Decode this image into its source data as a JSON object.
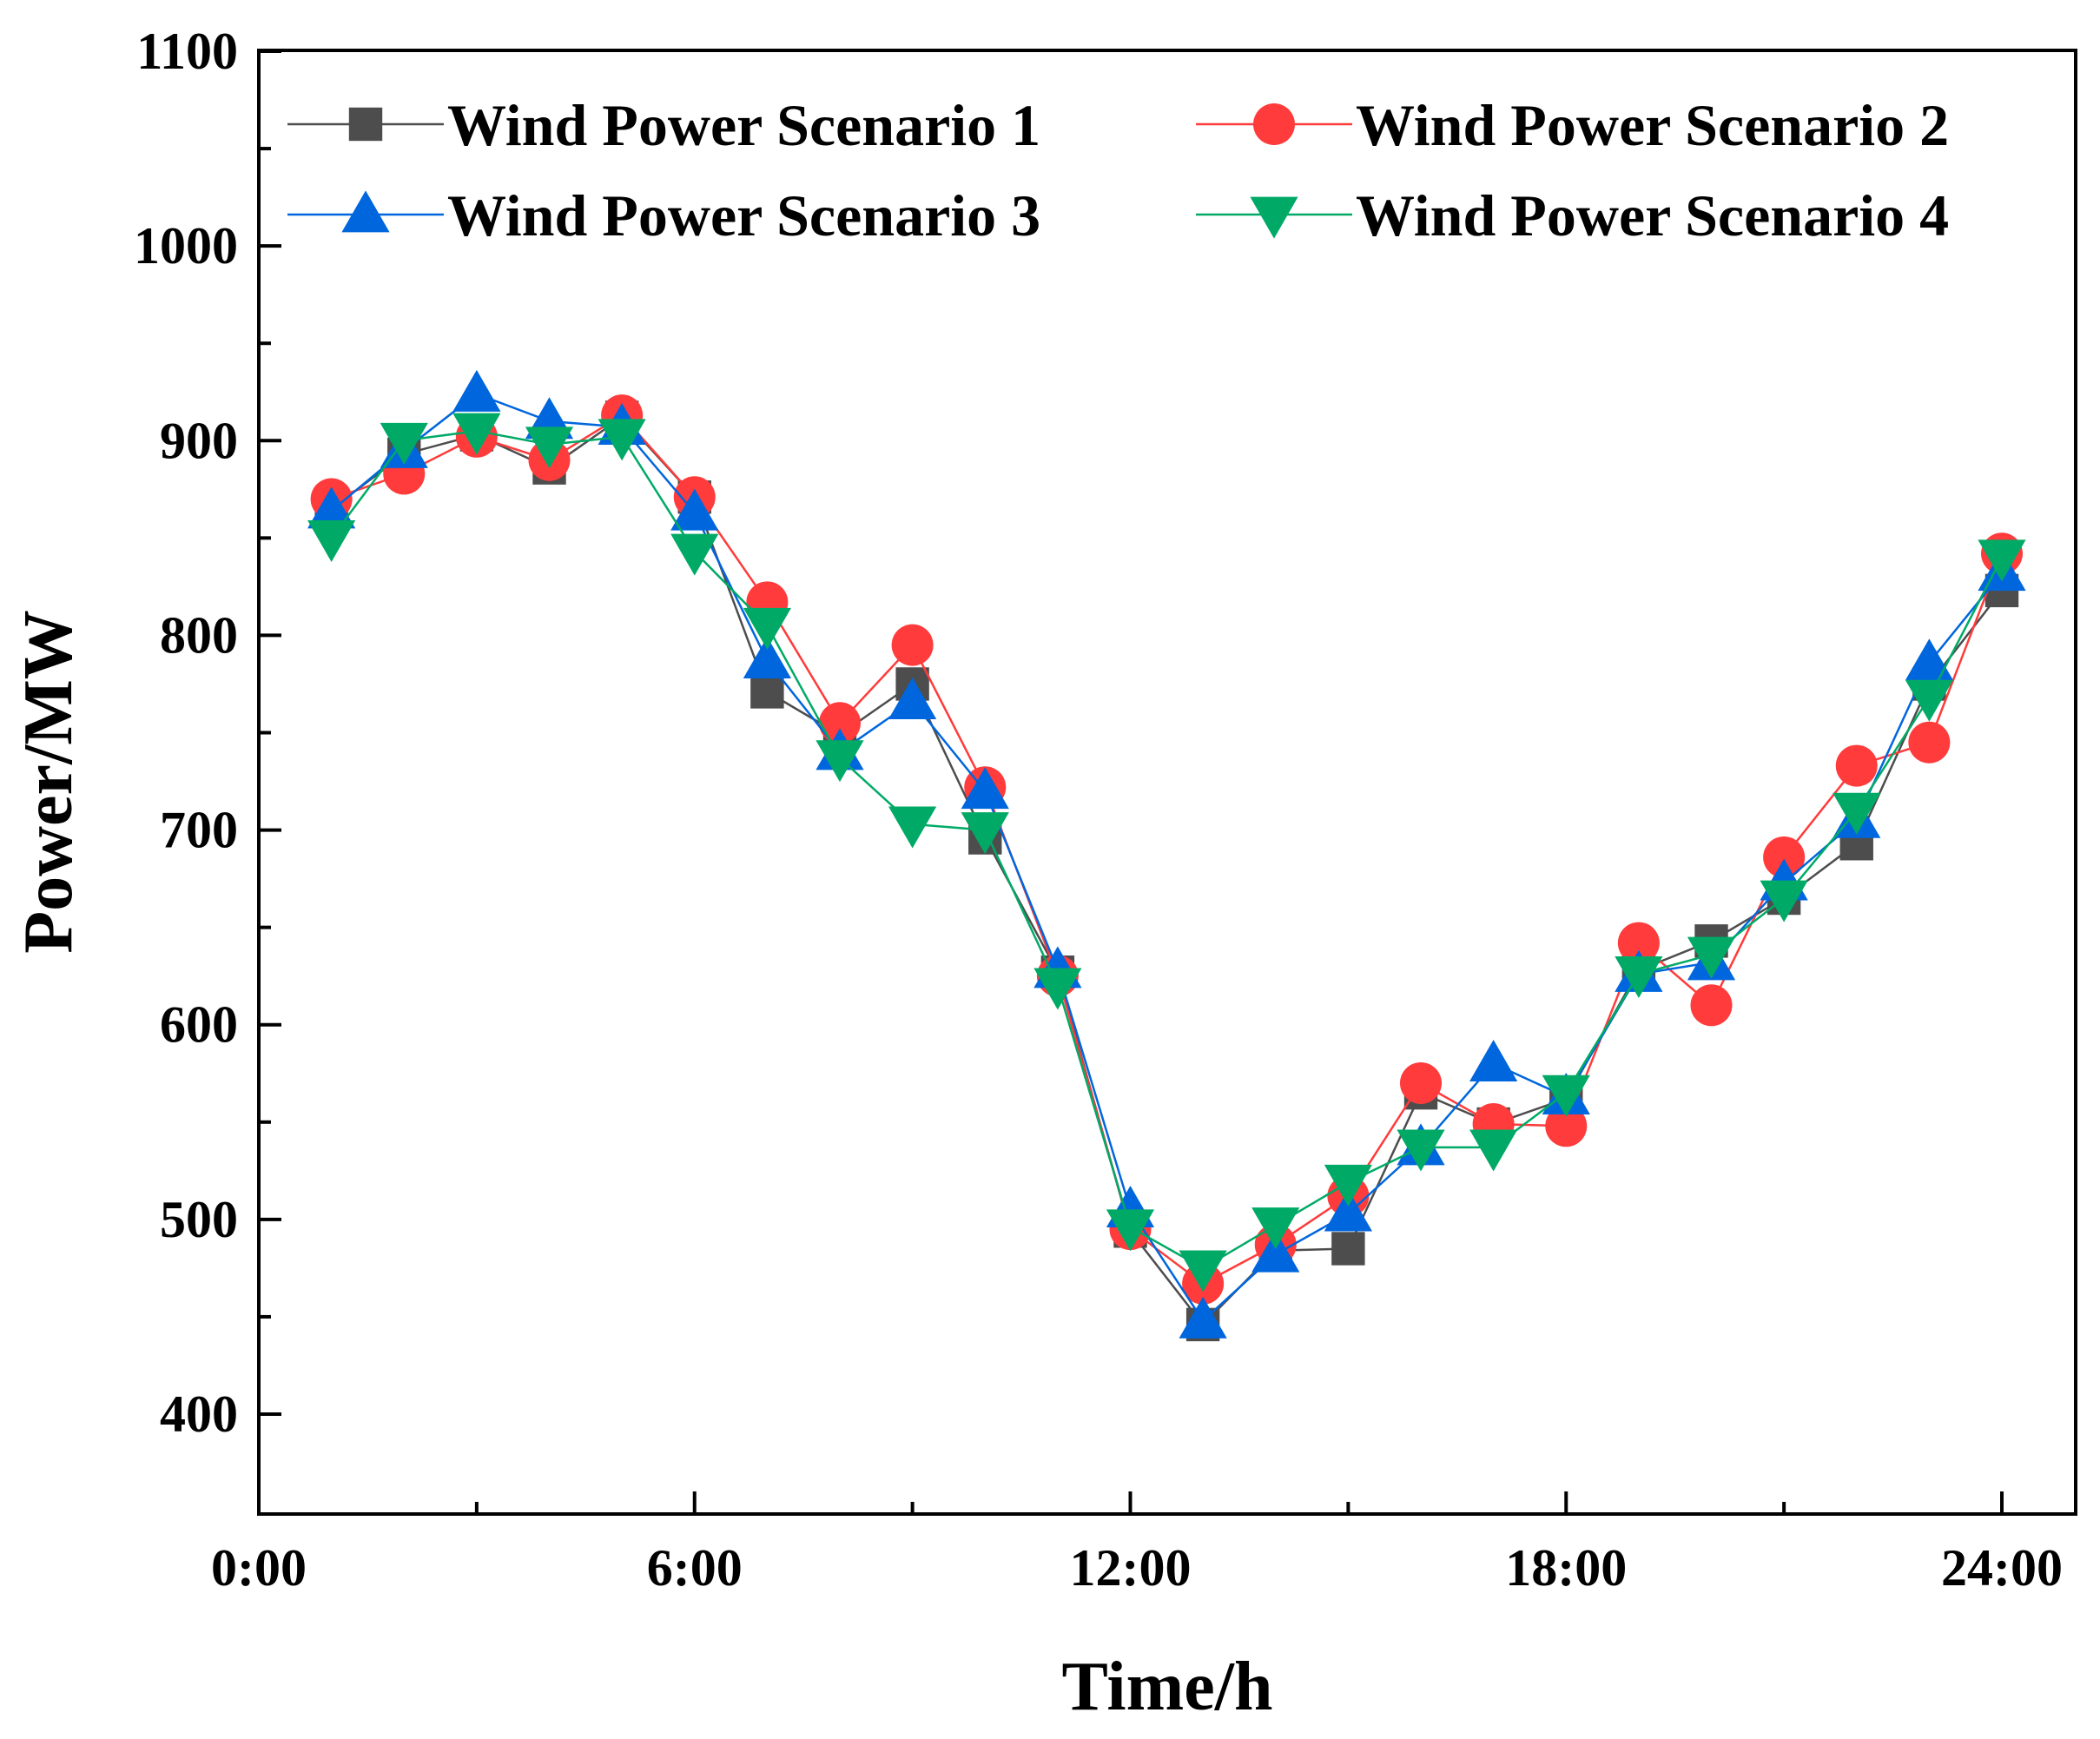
{
  "chart_data": {
    "type": "line",
    "title": "",
    "xlabel": "Time/h",
    "ylabel": "Power/MW",
    "xlim": [
      0,
      24
    ],
    "ylim": [
      350,
      1100
    ],
    "x_ticks": [
      0,
      6,
      12,
      18,
      24
    ],
    "x_tick_labels": [
      "0:00",
      "6:00",
      "12:00",
      "18:00",
      "24:00"
    ],
    "y_ticks": [
      400,
      500,
      600,
      700,
      800,
      900,
      1000,
      1100
    ],
    "y_tick_labels": [
      "400",
      "500",
      "600",
      "700",
      "800",
      "900",
      "1000",
      "1100"
    ],
    "grid": false,
    "legend_placement": "top",
    "x": [
      1,
      2,
      3,
      4,
      5,
      6,
      7,
      8,
      9,
      10,
      11,
      12,
      13,
      14,
      15,
      16,
      17,
      18,
      19,
      20,
      21,
      22,
      23,
      24
    ],
    "series": [
      {
        "name": "Wind Power Scenario 1",
        "color": "#4d4d4d",
        "marker": "square",
        "values": [
          865,
          893,
          903,
          886,
          912,
          871,
          771,
          749,
          775,
          696,
          627,
          494,
          446,
          484,
          485,
          565,
          549,
          562,
          628,
          643,
          665,
          693,
          775,
          823
        ]
      },
      {
        "name": "Wind Power Scenario 2",
        "color": "#ff3b3b",
        "marker": "circle",
        "values": [
          870,
          883,
          902,
          890,
          913,
          871,
          817,
          755,
          795,
          722,
          625,
          495,
          467,
          487,
          512,
          570,
          549,
          548,
          642,
          610,
          686,
          733,
          745,
          842
        ]
      },
      {
        "name": "Wind Power Scenario 3",
        "color": "#0066dd",
        "marker": "triangle-up",
        "values": [
          864,
          895,
          924,
          910,
          907,
          863,
          787,
          740,
          766,
          720,
          628,
          505,
          448,
          482,
          503,
          537,
          580,
          563,
          626,
          632,
          673,
          705,
          786,
          832
        ]
      },
      {
        "name": "Wind Power Scenario 4",
        "color": "#00aa66",
        "marker": "triangle-down",
        "values": [
          850,
          900,
          905,
          898,
          902,
          843,
          805,
          737,
          703,
          700,
          620,
          496,
          475,
          497,
          519,
          537,
          537,
          565,
          626,
          636,
          665,
          710,
          768,
          840
        ]
      }
    ]
  }
}
